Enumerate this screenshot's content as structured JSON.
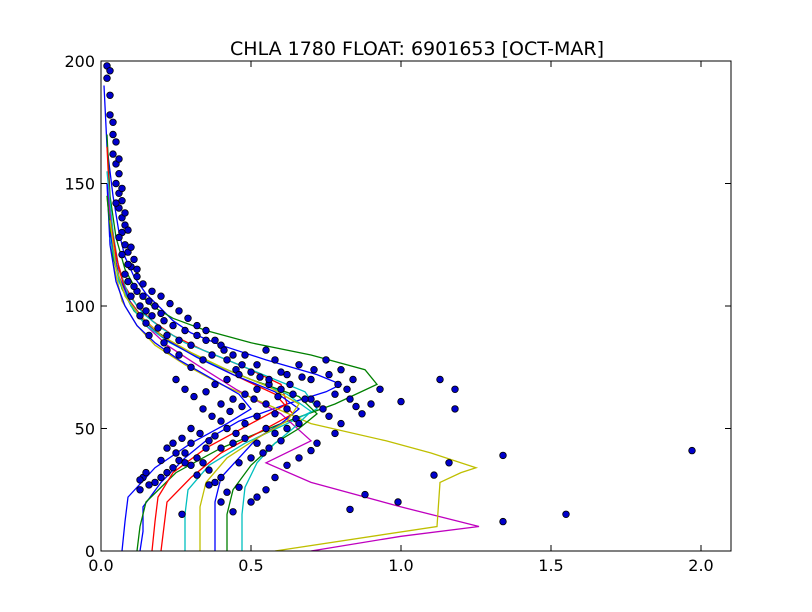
{
  "chart_data": {
    "type": "line",
    "title": "CHLA 1780 FLOAT: 6901653 [OCT-MAR]",
    "xlabel": "",
    "ylabel": "",
    "xlim": [
      0,
      2.1
    ],
    "ylim": [
      0,
      200
    ],
    "xticks": [
      0.0,
      0.5,
      1.0,
      1.5,
      2.0
    ],
    "xtick_labels": [
      "0.0",
      "0.5",
      "1.0",
      "1.5",
      "2.0"
    ],
    "yticks": [
      0,
      50,
      100,
      150,
      200
    ],
    "ytick_labels": [
      "0",
      "50",
      "100",
      "150",
      "200"
    ],
    "grid": false,
    "legend": "none",
    "line_colors": [
      "#0000ff",
      "#008000",
      "#ff0000",
      "#00bfbf",
      "#bf00bf",
      "#bfbf00"
    ],
    "series": [
      {
        "color": "#0000ff",
        "x": [
          0.13,
          0.14,
          0.14,
          0.2,
          0.28,
          0.36,
          0.46,
          0.62,
          0.75,
          0.8,
          0.72,
          0.55,
          0.4,
          0.3,
          0.24,
          0.2,
          0.15,
          0.11,
          0.08,
          0.06,
          0.04,
          0.02,
          0.01
        ],
        "y": [
          0,
          8,
          18,
          28,
          38,
          46,
          53,
          60,
          65,
          68,
          72,
          78,
          84,
          89,
          94,
          99,
          105,
          112,
          120,
          130,
          145,
          165,
          190
        ]
      },
      {
        "color": "#008000",
        "x": [
          0.12,
          0.13,
          0.15,
          0.25,
          0.4,
          0.6,
          0.78,
          0.92,
          0.88,
          0.7,
          0.5,
          0.35,
          0.24,
          0.17,
          0.12,
          0.08,
          0.05,
          0.03,
          0.02
        ],
        "y": [
          0,
          10,
          20,
          32,
          42,
          52,
          60,
          68,
          74,
          80,
          85,
          90,
          95,
          100,
          106,
          115,
          128,
          145,
          170
        ]
      },
      {
        "color": "#ff0000",
        "x": [
          0.17,
          0.18,
          0.19,
          0.24,
          0.35,
          0.5,
          0.62,
          0.6,
          0.48,
          0.34,
          0.24,
          0.17,
          0.12,
          0.08,
          0.05,
          0.03,
          0.02
        ],
        "y": [
          0,
          12,
          22,
          32,
          42,
          52,
          60,
          68,
          75,
          82,
          88,
          94,
          100,
          108,
          120,
          140,
          165
        ]
      },
      {
        "color": "#00bfbf",
        "x": [
          0.28,
          0.28,
          0.29,
          0.36,
          0.48,
          0.62,
          0.72,
          0.68,
          0.54,
          0.4,
          0.28,
          0.2,
          0.14,
          0.09,
          0.06,
          0.04,
          0.02
        ],
        "y": [
          0,
          15,
          25,
          35,
          44,
          52,
          58,
          65,
          72,
          79,
          85,
          91,
          97,
          105,
          115,
          130,
          155
        ]
      },
      {
        "color": "#bf00bf",
        "x": [
          0.7,
          1.0,
          1.26,
          1.0,
          0.7,
          0.55,
          0.7,
          0.6,
          0.45,
          0.32,
          0.22,
          0.15,
          0.1,
          0.06,
          0.04,
          0.02
        ],
        "y": [
          0,
          6,
          10,
          18,
          28,
          36,
          45,
          56,
          66,
          76,
          84,
          92,
          100,
          110,
          125,
          150
        ]
      },
      {
        "color": "#bfbf00",
        "x": [
          0.58,
          1.12,
          1.13,
          1.2,
          1.25,
          1.1,
          0.95,
          0.7,
          0.55,
          0.4,
          0.28,
          0.18,
          0.12,
          0.07,
          0.04,
          0.02
        ],
        "y": [
          0,
          10,
          28,
          32,
          34,
          40,
          45,
          52,
          60,
          68,
          76,
          84,
          92,
          102,
          118,
          145
        ]
      },
      {
        "color": "#0000ff",
        "x": [
          0.07,
          0.08,
          0.09,
          0.18,
          0.3,
          0.42,
          0.5,
          0.46,
          0.36,
          0.26,
          0.18,
          0.12,
          0.08,
          0.05,
          0.03,
          0.02
        ],
        "y": [
          0,
          12,
          22,
          34,
          44,
          52,
          58,
          64,
          71,
          78,
          85,
          92,
          100,
          110,
          125,
          150
        ]
      },
      {
        "color": "#008000",
        "x": [
          0.42,
          0.42,
          0.44,
          0.5,
          0.58,
          0.66,
          0.72,
          0.66,
          0.5,
          0.36,
          0.25,
          0.17,
          0.11,
          0.07,
          0.04,
          0.02
        ],
        "y": [
          0,
          15,
          25,
          35,
          44,
          50,
          56,
          63,
          70,
          77,
          84,
          91,
          98,
          107,
          120,
          145
        ]
      },
      {
        "color": "#ff0000",
        "x": [
          0.2,
          0.21,
          0.22,
          0.3,
          0.4,
          0.52,
          0.64,
          0.58,
          0.44,
          0.31,
          0.21,
          0.14,
          0.09,
          0.06,
          0.03
        ],
        "y": [
          0,
          10,
          20,
          30,
          40,
          48,
          56,
          64,
          72,
          80,
          87,
          95,
          103,
          115,
          135
        ]
      },
      {
        "color": "#00bfbf",
        "x": [
          0.47,
          0.47,
          0.48,
          0.52,
          0.58,
          0.64,
          0.7,
          0.62,
          0.48,
          0.34,
          0.23,
          0.15,
          0.1,
          0.06,
          0.03
        ],
        "y": [
          0,
          15,
          26,
          36,
          44,
          50,
          57,
          64,
          71,
          78,
          85,
          92,
          100,
          110,
          128
        ]
      },
      {
        "color": "#0000ff",
        "x": [
          0.38,
          0.38,
          0.4,
          0.46,
          0.52,
          0.6,
          0.66,
          0.58,
          0.44,
          0.32,
          0.22,
          0.15,
          0.1,
          0.06,
          0.03
        ],
        "y": [
          0,
          20,
          30,
          38,
          46,
          52,
          58,
          65,
          72,
          79,
          86,
          93,
          101,
          112,
          130
        ]
      },
      {
        "color": "#bfbf00",
        "x": [
          0.33,
          0.33,
          0.35,
          0.42,
          0.52,
          0.62,
          0.66,
          0.56,
          0.42,
          0.3,
          0.2,
          0.13,
          0.08,
          0.05,
          0.03
        ],
        "y": [
          0,
          18,
          28,
          38,
          46,
          53,
          60,
          67,
          74,
          81,
          88,
          96,
          104,
          116,
          135
        ]
      }
    ],
    "scatter": {
      "color": "#0000cc",
      "points": [
        [
          1.97,
          41
        ],
        [
          1.55,
          15
        ],
        [
          1.34,
          12
        ],
        [
          1.34,
          39
        ],
        [
          0.99,
          20
        ],
        [
          0.83,
          17
        ],
        [
          0.88,
          23
        ],
        [
          1.16,
          36
        ],
        [
          1.11,
          31
        ],
        [
          1.13,
          70
        ],
        [
          1.18,
          66
        ],
        [
          1.18,
          58
        ],
        [
          1.0,
          61
        ],
        [
          0.93,
          66
        ],
        [
          0.9,
          60
        ],
        [
          0.85,
          59
        ],
        [
          0.8,
          52
        ],
        [
          0.78,
          48
        ],
        [
          0.72,
          44
        ],
        [
          0.7,
          41
        ],
        [
          0.66,
          38
        ],
        [
          0.62,
          35
        ],
        [
          0.58,
          30
        ],
        [
          0.55,
          25
        ],
        [
          0.52,
          22
        ],
        [
          0.5,
          20
        ],
        [
          0.46,
          26
        ],
        [
          0.42,
          24
        ],
        [
          0.4,
          30
        ],
        [
          0.38,
          28
        ],
        [
          0.36,
          33
        ],
        [
          0.34,
          36
        ],
        [
          0.32,
          38
        ],
        [
          0.3,
          35
        ],
        [
          0.28,
          40
        ],
        [
          0.26,
          37
        ],
        [
          0.24,
          34
        ],
        [
          0.22,
          32
        ],
        [
          0.2,
          30
        ],
        [
          0.18,
          28
        ],
        [
          0.16,
          27
        ],
        [
          0.14,
          30
        ],
        [
          0.13,
          25
        ],
        [
          0.13,
          29
        ],
        [
          0.15,
          32
        ],
        [
          0.2,
          37
        ],
        [
          0.25,
          40
        ],
        [
          0.3,
          44
        ],
        [
          0.35,
          42
        ],
        [
          0.38,
          47
        ],
        [
          0.42,
          50
        ],
        [
          0.45,
          48
        ],
        [
          0.48,
          52
        ],
        [
          0.52,
          55
        ],
        [
          0.55,
          50
        ],
        [
          0.58,
          56
        ],
        [
          0.62,
          58
        ],
        [
          0.65,
          54
        ],
        [
          0.7,
          62
        ],
        [
          0.74,
          58
        ],
        [
          0.78,
          64
        ],
        [
          0.82,
          66
        ],
        [
          0.84,
          70
        ],
        [
          0.8,
          74
        ],
        [
          0.76,
          72
        ],
        [
          0.7,
          70
        ],
        [
          0.66,
          76
        ],
        [
          0.62,
          72
        ],
        [
          0.58,
          78
        ],
        [
          0.55,
          82
        ],
        [
          0.52,
          76
        ],
        [
          0.48,
          80
        ],
        [
          0.45,
          74
        ],
        [
          0.42,
          78
        ],
        [
          0.4,
          84
        ],
        [
          0.37,
          80
        ],
        [
          0.35,
          86
        ],
        [
          0.32,
          88
        ],
        [
          0.3,
          84
        ],
        [
          0.28,
          90
        ],
        [
          0.26,
          86
        ],
        [
          0.24,
          92
        ],
        [
          0.22,
          88
        ],
        [
          0.21,
          94
        ],
        [
          0.2,
          97
        ],
        [
          0.18,
          100
        ],
        [
          0.17,
          96
        ],
        [
          0.16,
          102
        ],
        [
          0.15,
          98
        ],
        [
          0.14,
          104
        ],
        [
          0.13,
          100
        ],
        [
          0.12,
          106
        ],
        [
          0.11,
          108
        ],
        [
          0.1,
          104
        ],
        [
          0.09,
          110
        ],
        [
          0.08,
          113
        ],
        [
          0.1,
          116
        ],
        [
          0.11,
          119
        ],
        [
          0.09,
          122
        ],
        [
          0.08,
          125
        ],
        [
          0.07,
          130
        ],
        [
          0.08,
          133
        ],
        [
          0.07,
          136
        ],
        [
          0.06,
          140
        ],
        [
          0.07,
          143
        ],
        [
          0.06,
          146
        ],
        [
          0.05,
          150
        ],
        [
          0.06,
          154
        ],
        [
          0.05,
          158
        ],
        [
          0.04,
          162
        ],
        [
          0.04,
          170
        ],
        [
          0.03,
          178
        ],
        [
          0.03,
          186
        ],
        [
          0.02,
          193
        ],
        [
          0.02,
          198
        ],
        [
          0.03,
          196
        ],
        [
          0.04,
          175
        ],
        [
          0.05,
          142
        ],
        [
          0.06,
          128
        ],
        [
          0.07,
          121
        ],
        [
          0.09,
          117
        ],
        [
          0.12,
          112
        ],
        [
          0.14,
          109
        ],
        [
          0.17,
          106
        ],
        [
          0.2,
          104
        ],
        [
          0.23,
          101
        ],
        [
          0.26,
          98
        ],
        [
          0.29,
          95
        ],
        [
          0.32,
          92
        ],
        [
          0.35,
          90
        ],
        [
          0.38,
          86
        ],
        [
          0.41,
          82
        ],
        [
          0.44,
          80
        ],
        [
          0.47,
          76
        ],
        [
          0.5,
          73
        ],
        [
          0.53,
          71
        ],
        [
          0.56,
          68
        ],
        [
          0.6,
          66
        ],
        [
          0.64,
          64
        ],
        [
          0.68,
          62
        ],
        [
          0.72,
          60
        ],
        [
          0.76,
          55
        ],
        [
          0.6,
          45
        ],
        [
          0.56,
          42
        ],
        [
          0.52,
          44
        ],
        [
          0.48,
          46
        ],
        [
          0.44,
          44
        ],
        [
          0.4,
          42
        ],
        [
          0.36,
          45
        ],
        [
          0.33,
          48
        ],
        [
          0.3,
          50
        ],
        [
          0.27,
          46
        ],
        [
          0.24,
          44
        ],
        [
          0.22,
          42
        ],
        [
          0.28,
          36
        ],
        [
          0.32,
          31
        ],
        [
          0.36,
          27
        ],
        [
          0.4,
          20
        ],
        [
          0.44,
          16
        ],
        [
          0.27,
          15
        ],
        [
          0.46,
          36
        ],
        [
          0.5,
          38
        ],
        [
          0.54,
          40
        ],
        [
          0.58,
          48
        ],
        [
          0.62,
          50
        ],
        [
          0.66,
          52
        ],
        [
          0.4,
          60
        ],
        [
          0.44,
          62
        ],
        [
          0.48,
          64
        ],
        [
          0.52,
          66
        ],
        [
          0.56,
          70
        ],
        [
          0.6,
          73
        ],
        [
          0.35,
          65
        ],
        [
          0.38,
          68
        ],
        [
          0.42,
          70
        ],
        [
          0.46,
          72
        ],
        [
          0.3,
          75
        ],
        [
          0.34,
          78
        ],
        [
          0.22,
          82
        ],
        [
          0.26,
          80
        ],
        [
          0.16,
          88
        ],
        [
          0.19,
          91
        ],
        [
          0.21,
          85
        ],
        [
          0.15,
          93
        ],
        [
          0.13,
          96
        ],
        [
          0.12,
          115
        ],
        [
          0.1,
          124
        ],
        [
          0.09,
          131
        ],
        [
          0.08,
          138
        ],
        [
          0.07,
          148
        ],
        [
          0.06,
          160
        ],
        [
          0.05,
          167
        ],
        [
          0.25,
          70
        ],
        [
          0.28,
          66
        ],
        [
          0.31,
          63
        ],
        [
          0.34,
          58
        ],
        [
          0.37,
          55
        ],
        [
          0.4,
          53
        ],
        [
          0.43,
          57
        ],
        [
          0.47,
          59
        ],
        [
          0.51,
          62
        ],
        [
          0.55,
          60
        ],
        [
          0.59,
          63
        ],
        [
          0.63,
          68
        ],
        [
          0.67,
          71
        ],
        [
          0.71,
          74
        ],
        [
          0.75,
          78
        ],
        [
          0.79,
          68
        ],
        [
          0.83,
          62
        ],
        [
          0.87,
          56
        ]
      ]
    }
  }
}
